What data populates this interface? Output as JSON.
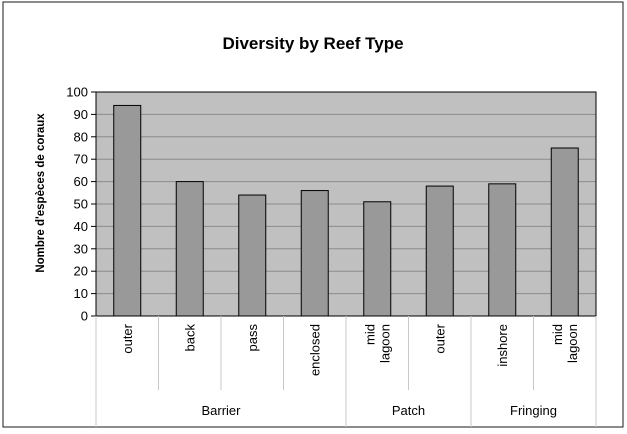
{
  "chart_data": {
    "type": "bar",
    "title": "Diversity by Reef Type",
    "ylabel": "Nombre d'espèces de coraux",
    "xlabel": "",
    "ylim": [
      0,
      100
    ],
    "yticks": [
      0,
      10,
      20,
      30,
      40,
      50,
      60,
      70,
      80,
      90,
      100
    ],
    "categories": [
      {
        "label": [
          "outer"
        ],
        "group": "Barrier",
        "value": 94
      },
      {
        "label": [
          "back"
        ],
        "group": "Barrier",
        "value": 60
      },
      {
        "label": [
          "pass"
        ],
        "group": "Barrier",
        "value": 54
      },
      {
        "label": [
          "enclosed"
        ],
        "group": "Barrier",
        "value": 56
      },
      {
        "label": [
          "mid",
          "lagoon"
        ],
        "group": "Patch",
        "value": 51
      },
      {
        "label": [
          "outer"
        ],
        "group": "Patch",
        "value": 58
      },
      {
        "label": [
          "inshore"
        ],
        "group": "Fringing",
        "value": 59
      },
      {
        "label": [
          "mid",
          "lagoon"
        ],
        "group": "Fringing",
        "value": 75
      }
    ],
    "groups": [
      {
        "name": "Barrier",
        "count": 4
      },
      {
        "name": "Patch",
        "count": 2
      },
      {
        "name": "Fringing",
        "count": 2
      }
    ],
    "grid": true,
    "legend": "none",
    "colors": {
      "plot_background": "#c0c0c0",
      "bar_fill": "#999999",
      "bar_stroke": "#000000",
      "gridline": "#8c8c8c",
      "frame": "#000000",
      "separator": "#c8c8c8"
    }
  }
}
